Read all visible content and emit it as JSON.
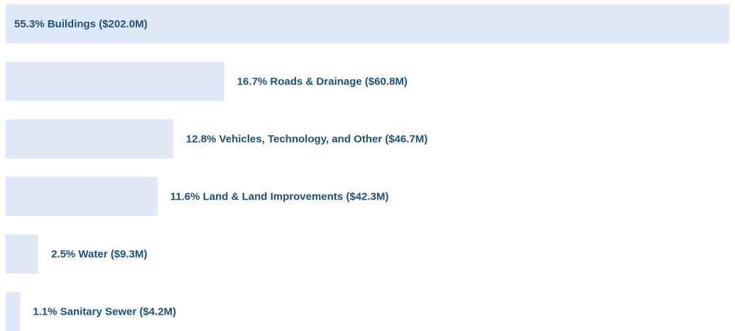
{
  "chart_data": {
    "type": "bar",
    "orientation": "horizontal",
    "categories": [
      "55.3% Buildings ($202.0M)",
      "16.7% Roads & Drainage ($60.8M)",
      "12.8% Vehicles, Technology, and Other ($46.7M)",
      "11.6% Land & Land Improvements ($42.3M)",
      "2.5% Water ($9.3M)",
      "1.1% Sanitary Sewer ($4.2M)"
    ],
    "values": [
      55.3,
      16.7,
      12.8,
      11.6,
      2.5,
      1.1
    ],
    "color": "#dfe8f6",
    "label_color": "#1d4f7c"
  }
}
